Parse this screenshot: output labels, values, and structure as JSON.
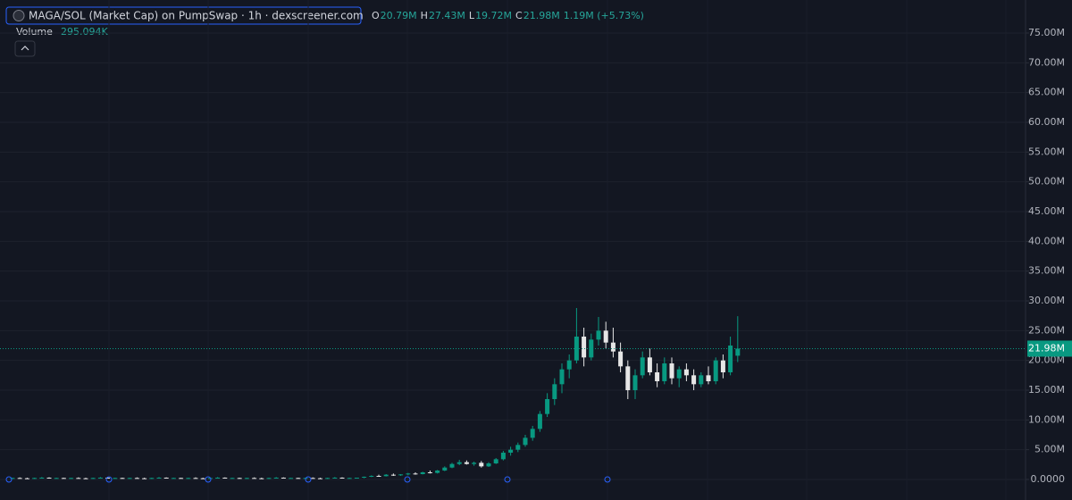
{
  "chart_data": {
    "type": "candlestick",
    "title": "MAGA/SOL (Market Cap) on PumpSwap · 1h · dexscreener.com",
    "ohlc": [
      {
        "key": "O",
        "value": 20.79,
        "label": "20.79M"
      },
      {
        "key": "H",
        "value": 27.43,
        "label": "27.43M"
      },
      {
        "key": "L",
        "value": 19.72,
        "label": "19.72M"
      },
      {
        "key": "C",
        "value": 21.98,
        "label": "21.98M"
      }
    ],
    "change": "1.19M (+5.73%)",
    "volume_label": "Volume",
    "volume_value": "295.094K",
    "up_color": "#089981",
    "down_color": "#e6e6e6",
    "last_price": {
      "value": 21.98,
      "label": "21.98M"
    },
    "ylim": [
      0,
      75
    ],
    "yticks": [
      {
        "value": 0,
        "label": "0.0000"
      },
      {
        "value": 5,
        "label": "5.00M"
      },
      {
        "value": 10,
        "label": "10.00M"
      },
      {
        "value": 15,
        "label": "15.00M"
      },
      {
        "value": 20,
        "label": "20.00M"
      },
      {
        "value": 25,
        "label": "25.00M"
      },
      {
        "value": 30,
        "label": "30.00M"
      },
      {
        "value": 35,
        "label": "35.00M"
      },
      {
        "value": 40,
        "label": "40.00M"
      },
      {
        "value": 45,
        "label": "45.00M"
      },
      {
        "value": 50,
        "label": "50.00M"
      },
      {
        "value": 55,
        "label": "55.00M"
      },
      {
        "value": 60,
        "label": "60.00M"
      },
      {
        "value": 65,
        "label": "65.00M"
      },
      {
        "value": 70,
        "label": "70.00M"
      },
      {
        "value": 75,
        "label": "75.00M"
      }
    ],
    "grid": true,
    "candles": [
      [
        0.2,
        0.3,
        0.1,
        0.25
      ],
      [
        0.25,
        0.35,
        0.15,
        0.2
      ],
      [
        0.2,
        0.3,
        0.1,
        0.15
      ],
      [
        0.15,
        0.3,
        0.1,
        0.25
      ],
      [
        0.25,
        0.4,
        0.2,
        0.3
      ],
      [
        0.3,
        0.35,
        0.2,
        0.2
      ],
      [
        0.2,
        0.3,
        0.15,
        0.25
      ],
      [
        0.25,
        0.3,
        0.15,
        0.2
      ],
      [
        0.2,
        0.3,
        0.1,
        0.25
      ],
      [
        0.25,
        0.35,
        0.15,
        0.2
      ],
      [
        0.2,
        0.3,
        0.1,
        0.15
      ],
      [
        0.15,
        0.3,
        0.1,
        0.25
      ],
      [
        0.25,
        0.4,
        0.2,
        0.3
      ],
      [
        0.3,
        0.35,
        0.2,
        0.2
      ],
      [
        0.2,
        0.3,
        0.15,
        0.25
      ],
      [
        0.25,
        0.3,
        0.15,
        0.2
      ],
      [
        0.2,
        0.3,
        0.1,
        0.25
      ],
      [
        0.25,
        0.35,
        0.15,
        0.2
      ],
      [
        0.2,
        0.3,
        0.1,
        0.15
      ],
      [
        0.15,
        0.3,
        0.1,
        0.25
      ],
      [
        0.25,
        0.4,
        0.2,
        0.3
      ],
      [
        0.3,
        0.35,
        0.2,
        0.2
      ],
      [
        0.2,
        0.3,
        0.15,
        0.25
      ],
      [
        0.25,
        0.3,
        0.15,
        0.2
      ],
      [
        0.2,
        0.3,
        0.1,
        0.25
      ],
      [
        0.25,
        0.35,
        0.15,
        0.2
      ],
      [
        0.2,
        0.3,
        0.1,
        0.15
      ],
      [
        0.15,
        0.3,
        0.1,
        0.25
      ],
      [
        0.25,
        0.4,
        0.2,
        0.3
      ],
      [
        0.3,
        0.35,
        0.2,
        0.2
      ],
      [
        0.2,
        0.3,
        0.15,
        0.25
      ],
      [
        0.25,
        0.3,
        0.15,
        0.2
      ],
      [
        0.2,
        0.3,
        0.1,
        0.25
      ],
      [
        0.25,
        0.35,
        0.15,
        0.2
      ],
      [
        0.2,
        0.3,
        0.1,
        0.15
      ],
      [
        0.15,
        0.3,
        0.1,
        0.25
      ],
      [
        0.25,
        0.4,
        0.2,
        0.3
      ],
      [
        0.3,
        0.35,
        0.2,
        0.2
      ],
      [
        0.2,
        0.3,
        0.15,
        0.25
      ],
      [
        0.25,
        0.3,
        0.15,
        0.2
      ],
      [
        0.2,
        0.3,
        0.1,
        0.25
      ],
      [
        0.25,
        0.35,
        0.15,
        0.2
      ],
      [
        0.2,
        0.3,
        0.1,
        0.15
      ],
      [
        0.15,
        0.3,
        0.1,
        0.25
      ],
      [
        0.25,
        0.4,
        0.2,
        0.3
      ],
      [
        0.3,
        0.35,
        0.2,
        0.2
      ],
      [
        0.2,
        0.3,
        0.15,
        0.25
      ],
      [
        0.25,
        0.3,
        0.15,
        0.3
      ],
      [
        0.3,
        0.5,
        0.2,
        0.45
      ],
      [
        0.45,
        0.7,
        0.4,
        0.6
      ],
      [
        0.6,
        0.8,
        0.5,
        0.55
      ],
      [
        0.55,
        0.9,
        0.5,
        0.8
      ],
      [
        0.8,
        1.0,
        0.6,
        0.7
      ],
      [
        0.7,
        0.9,
        0.6,
        0.85
      ],
      [
        0.85,
        1.1,
        0.7,
        1.0
      ],
      [
        1.0,
        1.2,
        0.8,
        0.9
      ],
      [
        0.9,
        1.3,
        0.85,
        1.2
      ],
      [
        1.2,
        1.5,
        1.0,
        1.1
      ],
      [
        1.1,
        1.6,
        1.0,
        1.5
      ],
      [
        1.5,
        2.2,
        1.4,
        2.0
      ],
      [
        2.0,
        2.8,
        1.9,
        2.6
      ],
      [
        2.6,
        3.3,
        2.4,
        2.9
      ],
      [
        2.9,
        3.2,
        2.5,
        2.6
      ],
      [
        2.6,
        3.0,
        2.3,
        2.8
      ],
      [
        2.8,
        3.1,
        2.0,
        2.2
      ],
      [
        2.2,
        2.9,
        2.1,
        2.7
      ],
      [
        2.7,
        3.6,
        2.6,
        3.4
      ],
      [
        3.4,
        4.8,
        3.2,
        4.5
      ],
      [
        4.5,
        5.5,
        4.0,
        5.0
      ],
      [
        5.0,
        6.2,
        4.6,
        5.8
      ],
      [
        5.8,
        7.5,
        5.5,
        7.0
      ],
      [
        7.0,
        9.0,
        6.5,
        8.5
      ],
      [
        8.5,
        11.5,
        8.0,
        11.0
      ],
      [
        11.0,
        14.5,
        10.5,
        13.5
      ],
      [
        13.5,
        17.0,
        12.5,
        16.0
      ],
      [
        16.0,
        19.5,
        14.5,
        18.5
      ],
      [
        18.5,
        21.0,
        17.0,
        20.0
      ],
      [
        20.0,
        28.8,
        19.5,
        24.0
      ],
      [
        24.0,
        25.5,
        19.0,
        20.5
      ],
      [
        20.5,
        24.5,
        20.0,
        23.5
      ],
      [
        23.5,
        27.3,
        22.5,
        25.0
      ],
      [
        25.0,
        26.5,
        22.0,
        23.0
      ],
      [
        23.0,
        25.5,
        20.5,
        21.5
      ],
      [
        21.5,
        23.0,
        18.0,
        19.0
      ],
      [
        19.0,
        20.0,
        13.5,
        15.0
      ],
      [
        15.0,
        18.5,
        13.5,
        17.5
      ],
      [
        17.5,
        21.5,
        17.0,
        20.5
      ],
      [
        20.5,
        22.0,
        17.5,
        18.0
      ],
      [
        18.0,
        19.5,
        15.5,
        16.5
      ],
      [
        16.5,
        20.5,
        16.0,
        19.5
      ],
      [
        19.5,
        20.5,
        16.0,
        17.0
      ],
      [
        17.0,
        19.0,
        15.5,
        18.5
      ],
      [
        18.5,
        19.5,
        16.5,
        17.5
      ],
      [
        17.5,
        18.5,
        15.0,
        16.0
      ],
      [
        16.0,
        18.0,
        15.5,
        17.5
      ],
      [
        17.5,
        19.0,
        16.0,
        16.5
      ],
      [
        16.5,
        20.5,
        16.0,
        20.0
      ],
      [
        20.0,
        21.0,
        17.0,
        18.0
      ],
      [
        18.0,
        24.0,
        17.5,
        22.5
      ],
      [
        20.79,
        27.43,
        19.72,
        21.98
      ]
    ]
  }
}
